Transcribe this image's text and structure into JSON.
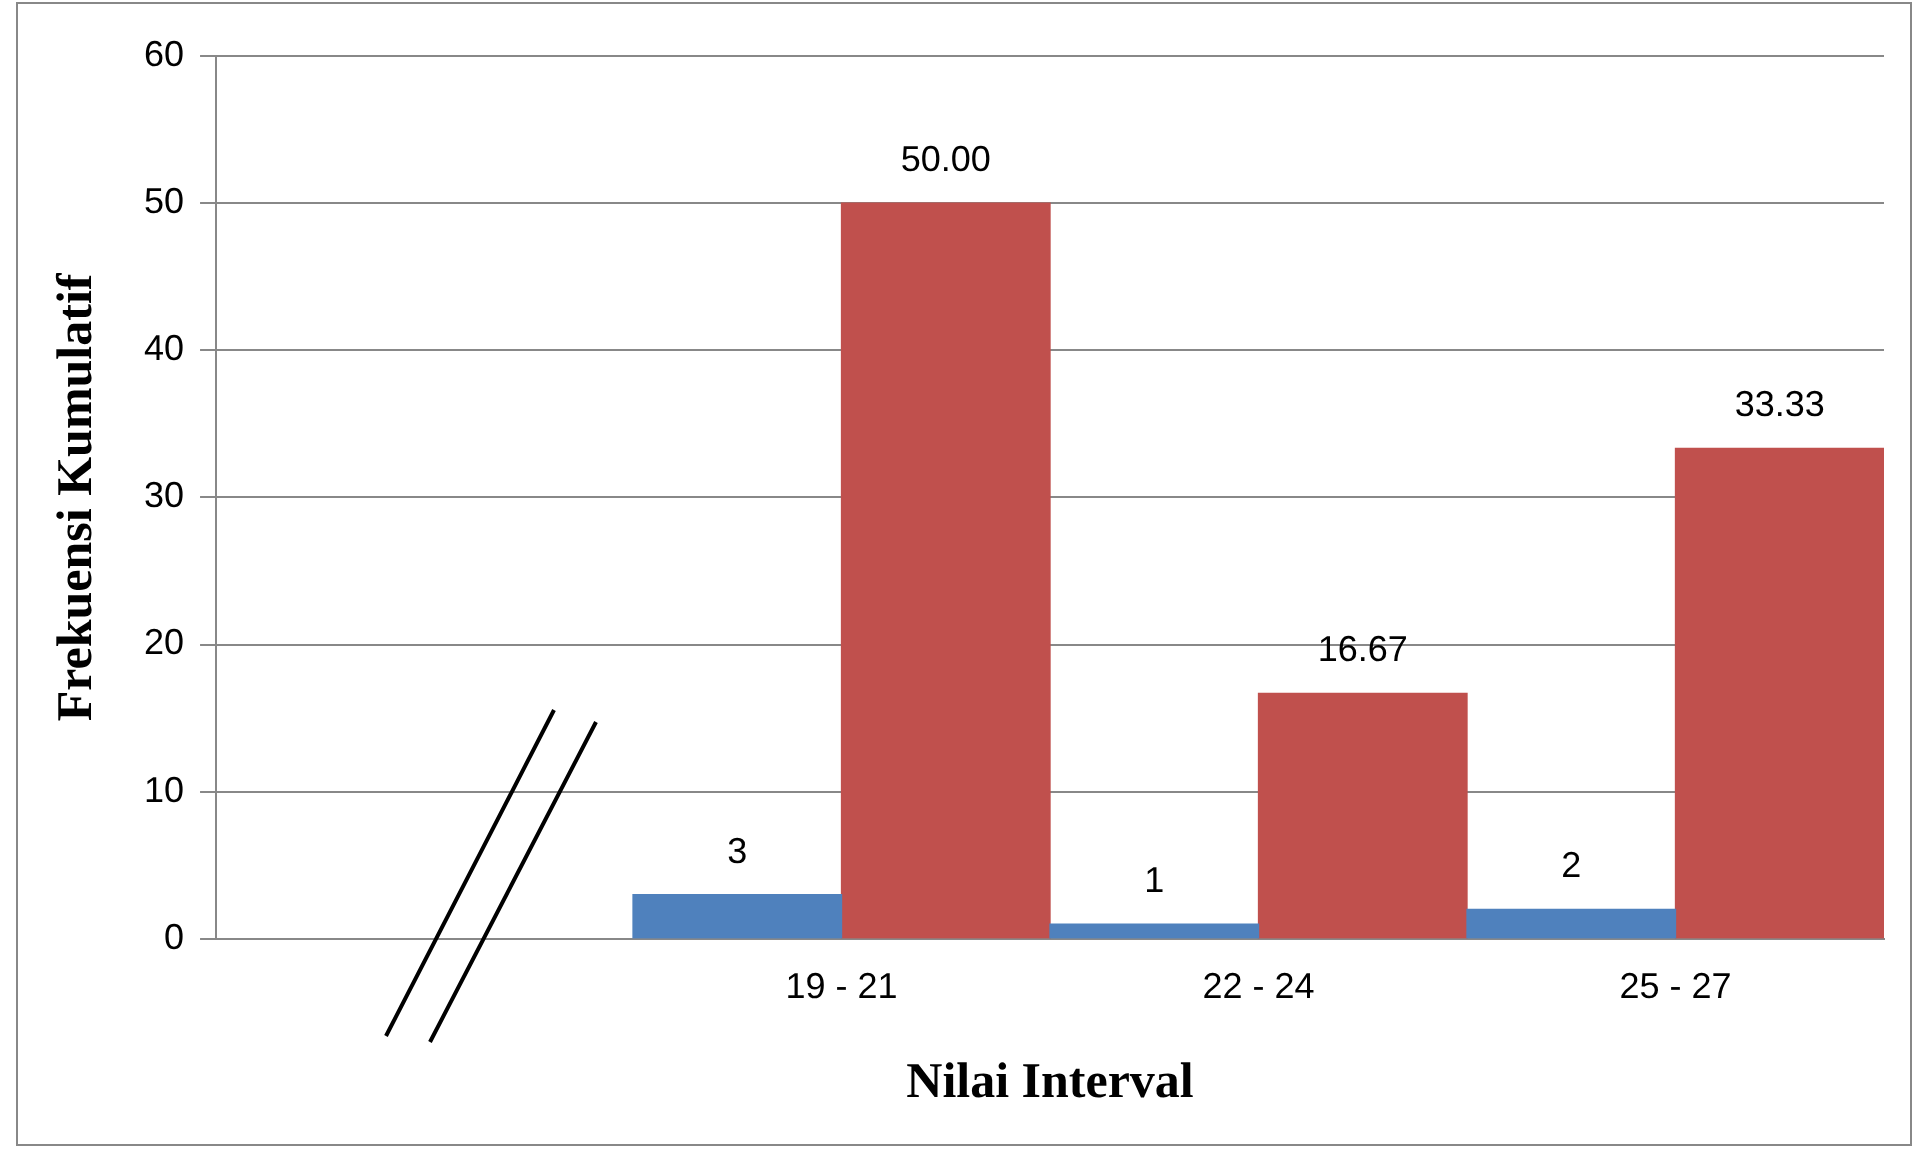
{
  "chart_data": {
    "type": "bar",
    "xlabel": "Nilai Interval",
    "ylabel": "Frekuensi Kumulatif",
    "categories": [
      null,
      "19 - 21",
      "22 - 24",
      "25 - 27"
    ],
    "series": [
      {
        "color": "#4f81bd",
        "values": [
          null,
          3,
          1,
          2
        ],
        "value_labels": [
          null,
          "3",
          "1",
          "2"
        ]
      },
      {
        "color": "#c0504d",
        "values": [
          null,
          50,
          16.67,
          33.33
        ],
        "value_labels": [
          null,
          "50.00",
          "16.67",
          "33.33"
        ]
      }
    ],
    "ylim": [
      0,
      60
    ],
    "yticks": [
      0,
      10,
      20,
      30,
      40,
      50,
      60
    ],
    "grid": "y",
    "legend": false
  }
}
